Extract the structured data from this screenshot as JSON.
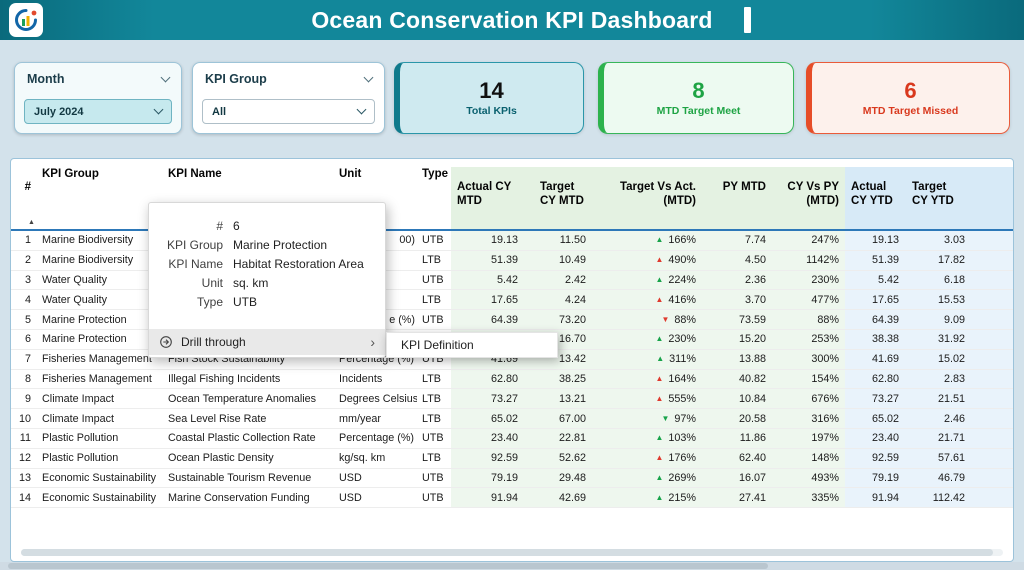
{
  "header": {
    "title": "Ocean Conservation KPI Dashboard"
  },
  "filters": {
    "month": {
      "label": "Month",
      "value": "July 2024"
    },
    "kpi_group": {
      "label": "KPI Group",
      "value": "All"
    }
  },
  "kpi_cards": [
    {
      "value": "14",
      "label": "Total KPIs",
      "accent": "#0f7a8c"
    },
    {
      "value": "8",
      "label": "MTD Target Meet",
      "accent": "#2db24d"
    },
    {
      "value": "6",
      "label": "MTD Target Missed",
      "accent": "#e64d28"
    }
  ],
  "colors": {
    "meet": "#18a34a",
    "missed": "#df3a2e"
  },
  "table": {
    "columns": [
      "#",
      "KPI Group",
      "KPI Name",
      "Unit",
      "Type",
      "Actual CY MTD",
      "Target CY MTD",
      "Target Vs Act. (MTD)",
      "PY MTD",
      "CY Vs PY (MTD)",
      "Actual CY YTD",
      "Target CY YTD"
    ],
    "rows": [
      {
        "num": "1",
        "group": "Marine Biodiversity",
        "name": "",
        "unit": "00)",
        "unit_fragment": true,
        "type": "UTB",
        "actual_mtd": "19.13",
        "target_mtd": "11.50",
        "ind": {
          "dir": "up",
          "ok": true,
          "pct": "166%"
        },
        "py_mtd": "7.74",
        "cy_vs_py": "247%",
        "actual_ytd": "19.13",
        "target_ytd": "3.03"
      },
      {
        "num": "2",
        "group": "Marine Biodiversity",
        "name": "",
        "unit": "",
        "type": "LTB",
        "actual_mtd": "51.39",
        "target_mtd": "10.49",
        "ind": {
          "dir": "up",
          "ok": false,
          "pct": "490%"
        },
        "py_mtd": "4.50",
        "cy_vs_py": "1142%",
        "actual_ytd": "51.39",
        "target_ytd": "17.82"
      },
      {
        "num": "3",
        "group": "Water Quality",
        "name": "",
        "unit": "",
        "type": "UTB",
        "actual_mtd": "5.42",
        "target_mtd": "2.42",
        "ind": {
          "dir": "up",
          "ok": true,
          "pct": "224%"
        },
        "py_mtd": "2.36",
        "cy_vs_py": "230%",
        "actual_ytd": "5.42",
        "target_ytd": "6.18"
      },
      {
        "num": "4",
        "group": "Water Quality",
        "name": "",
        "unit": "",
        "type": "LTB",
        "actual_mtd": "17.65",
        "target_mtd": "4.24",
        "ind": {
          "dir": "up",
          "ok": false,
          "pct": "416%"
        },
        "py_mtd": "3.70",
        "cy_vs_py": "477%",
        "actual_ytd": "17.65",
        "target_ytd": "15.53"
      },
      {
        "num": "5",
        "group": "Marine Protection",
        "name": "",
        "unit": "e (%)",
        "unit_fragment": true,
        "type": "UTB",
        "actual_mtd": "64.39",
        "target_mtd": "73.20",
        "ind": {
          "dir": "down",
          "ok": false,
          "pct": "88%"
        },
        "py_mtd": "73.59",
        "cy_vs_py": "88%",
        "actual_ytd": "64.39",
        "target_ytd": "9.09"
      },
      {
        "num": "6",
        "group": "Marine Protection",
        "name": "",
        "unit": "",
        "type": "",
        "actual_mtd": "",
        "target_mtd": "16.70",
        "ind": {
          "dir": "up",
          "ok": true,
          "pct": "230%"
        },
        "py_mtd": "15.20",
        "cy_vs_py": "253%",
        "actual_ytd": "38.38",
        "target_ytd": "31.92"
      },
      {
        "num": "7",
        "group": "Fisheries Management",
        "name": "Fish Stock Sustainability",
        "unit": "Percentage (%)",
        "type": "UTB",
        "actual_mtd": "41.69",
        "target_mtd": "13.42",
        "ind": {
          "dir": "up",
          "ok": true,
          "pct": "311%"
        },
        "py_mtd": "13.88",
        "cy_vs_py": "300%",
        "actual_ytd": "41.69",
        "target_ytd": "15.02"
      },
      {
        "num": "8",
        "group": "Fisheries Management",
        "name": "Illegal Fishing Incidents",
        "unit": "Incidents",
        "type": "LTB",
        "actual_mtd": "62.80",
        "target_mtd": "38.25",
        "ind": {
          "dir": "up",
          "ok": false,
          "pct": "164%"
        },
        "py_mtd": "40.82",
        "cy_vs_py": "154%",
        "actual_ytd": "62.80",
        "target_ytd": "2.83"
      },
      {
        "num": "9",
        "group": "Climate Impact",
        "name": "Ocean Temperature Anomalies",
        "unit": "Degrees Celsius",
        "type": "LTB",
        "actual_mtd": "73.27",
        "target_mtd": "13.21",
        "ind": {
          "dir": "up",
          "ok": false,
          "pct": "555%"
        },
        "py_mtd": "10.84",
        "cy_vs_py": "676%",
        "actual_ytd": "73.27",
        "target_ytd": "21.51"
      },
      {
        "num": "10",
        "group": "Climate Impact",
        "name": "Sea Level Rise Rate",
        "unit": "mm/year",
        "type": "LTB",
        "actual_mtd": "65.02",
        "target_mtd": "67.00",
        "ind": {
          "dir": "down",
          "ok": true,
          "pct": "97%"
        },
        "py_mtd": "20.58",
        "cy_vs_py": "316%",
        "actual_ytd": "65.02",
        "target_ytd": "2.46"
      },
      {
        "num": "11",
        "group": "Plastic Pollution",
        "name": "Coastal Plastic Collection Rate",
        "unit": "Percentage (%)",
        "type": "UTB",
        "actual_mtd": "23.40",
        "target_mtd": "22.81",
        "ind": {
          "dir": "up",
          "ok": true,
          "pct": "103%"
        },
        "py_mtd": "11.86",
        "cy_vs_py": "197%",
        "actual_ytd": "23.40",
        "target_ytd": "21.71"
      },
      {
        "num": "12",
        "group": "Plastic Pollution",
        "name": "Ocean Plastic Density",
        "unit": "kg/sq. km",
        "type": "LTB",
        "actual_mtd": "92.59",
        "target_mtd": "52.62",
        "ind": {
          "dir": "up",
          "ok": false,
          "pct": "176%"
        },
        "py_mtd": "62.40",
        "cy_vs_py": "148%",
        "actual_ytd": "92.59",
        "target_ytd": "57.61"
      },
      {
        "num": "13",
        "group": "Economic Sustainability",
        "name": "Sustainable Tourism Revenue",
        "unit": "USD",
        "type": "UTB",
        "actual_mtd": "79.19",
        "target_mtd": "29.48",
        "ind": {
          "dir": "up",
          "ok": true,
          "pct": "269%"
        },
        "py_mtd": "16.07",
        "cy_vs_py": "493%",
        "actual_ytd": "79.19",
        "target_ytd": "46.79"
      },
      {
        "num": "14",
        "group": "Economic Sustainability",
        "name": "Marine Conservation Funding",
        "unit": "USD",
        "type": "UTB",
        "actual_mtd": "91.94",
        "target_mtd": "42.69",
        "ind": {
          "dir": "up",
          "ok": true,
          "pct": "215%"
        },
        "py_mtd": "27.41",
        "cy_vs_py": "335%",
        "actual_ytd": "91.94",
        "target_ytd": "112.42"
      }
    ]
  },
  "tooltip": {
    "fields": [
      {
        "label": "#",
        "value": "6"
      },
      {
        "label": "KPI Group",
        "value": "Marine Protection"
      },
      {
        "label": "KPI Name",
        "value": "Habitat Restoration Area"
      },
      {
        "label": "Unit",
        "value": "sq. km"
      },
      {
        "label": "Type",
        "value": "UTB"
      }
    ],
    "drill_through": "Drill through",
    "submenu": "KPI Definition"
  }
}
